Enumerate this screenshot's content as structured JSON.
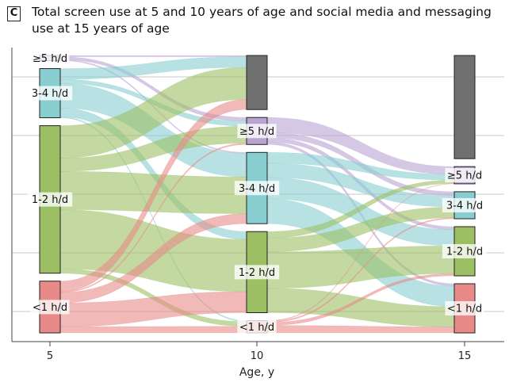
{
  "panel_letter": "C",
  "title": "Total screen use at 5 and 10 years of age and social media and messaging use at 15 years of age",
  "chart_data": {
    "type": "sankey",
    "xlabel": "Age, y",
    "x_ticks": [
      "5",
      "10",
      "15"
    ],
    "grid": true,
    "category_colors": {
      "≥5 h/d": "#b9a3d3",
      "3-4 h/d": "#88cdd0",
      "1-2 h/d": "#9bbf62",
      "<1 h/d": "#e88b88",
      "Missing": "#707070"
    },
    "stages": [
      {
        "age": "5",
        "nodes": [
          {
            "label": "≥5 h/d",
            "share": 0.02
          },
          {
            "label": "3-4 h/d",
            "share": 0.19
          },
          {
            "label": "1-2 h/d",
            "share": 0.57
          },
          {
            "label": "<1 h/d",
            "share": 0.2
          }
        ]
      },
      {
        "age": "10",
        "nodes": [
          {
            "label": "",
            "share": 0.22
          },
          {
            "label": "≥5 h/d",
            "share": 0.11
          },
          {
            "label": "3-4 h/d",
            "share": 0.29
          },
          {
            "label": "1-2 h/d",
            "share": 0.33
          },
          {
            "label": "<1 h/d",
            "share": 0.05
          }
        ]
      },
      {
        "age": "15",
        "nodes": [
          {
            "label": "",
            "share": 0.42
          },
          {
            "label": "≥5 h/d",
            "share": 0.07
          },
          {
            "label": "3-4 h/d",
            "share": 0.11
          },
          {
            "label": "1-2 h/d",
            "share": 0.2
          },
          {
            "label": "<1 h/d",
            "share": 0.2
          }
        ]
      }
    ]
  }
}
